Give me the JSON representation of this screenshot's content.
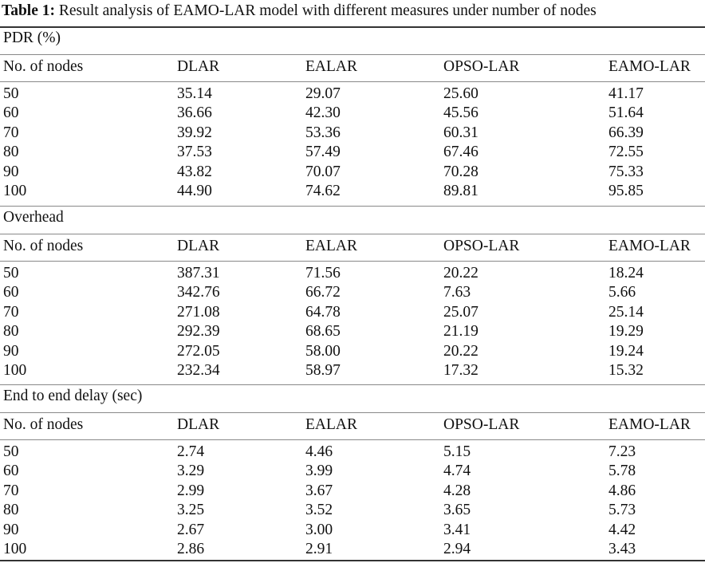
{
  "caption": {
    "label": "Table 1:",
    "text": "Result analysis of EAMO-LAR model with different measures under number of nodes"
  },
  "columns": [
    "No. of nodes",
    "DLAR",
    "EALAR",
    "OPSO-LAR",
    "EAMO-LAR"
  ],
  "sections": [
    {
      "title": "PDR (%)",
      "rows": [
        [
          "50",
          "35.14",
          "29.07",
          "25.60",
          "41.17"
        ],
        [
          "60",
          "36.66",
          "42.30",
          "45.56",
          "51.64"
        ],
        [
          "70",
          "39.92",
          "53.36",
          "60.31",
          "66.39"
        ],
        [
          "80",
          "37.53",
          "57.49",
          "67.46",
          "72.55"
        ],
        [
          "90",
          "43.82",
          "70.07",
          "70.28",
          "75.33"
        ],
        [
          "100",
          "44.90",
          "74.62",
          "89.81",
          "95.85"
        ]
      ]
    },
    {
      "title": "Overhead",
      "rows": [
        [
          "50",
          "387.31",
          "71.56",
          "20.22",
          "18.24"
        ],
        [
          "60",
          "342.76",
          "66.72",
          "7.63",
          "5.66"
        ],
        [
          "70",
          "271.08",
          "64.78",
          "25.07",
          "25.14"
        ],
        [
          "80",
          "292.39",
          "68.65",
          "21.19",
          "19.29"
        ],
        [
          "90",
          "272.05",
          "58.00",
          "20.22",
          "19.24"
        ],
        [
          "100",
          "232.34",
          "58.97",
          "17.32",
          "15.32"
        ]
      ]
    },
    {
      "title": "End to end delay (sec)",
      "rows": [
        [
          "50",
          "2.74",
          "4.46",
          "5.15",
          "7.23"
        ],
        [
          "60",
          "3.29",
          "3.99",
          "4.74",
          "5.78"
        ],
        [
          "70",
          "2.99",
          "3.67",
          "4.28",
          "4.86"
        ],
        [
          "80",
          "3.25",
          "3.52",
          "3.65",
          "5.73"
        ],
        [
          "90",
          "2.67",
          "3.00",
          "3.41",
          "4.42"
        ],
        [
          "100",
          "2.86",
          "2.91",
          "2.94",
          "3.43"
        ]
      ]
    }
  ]
}
